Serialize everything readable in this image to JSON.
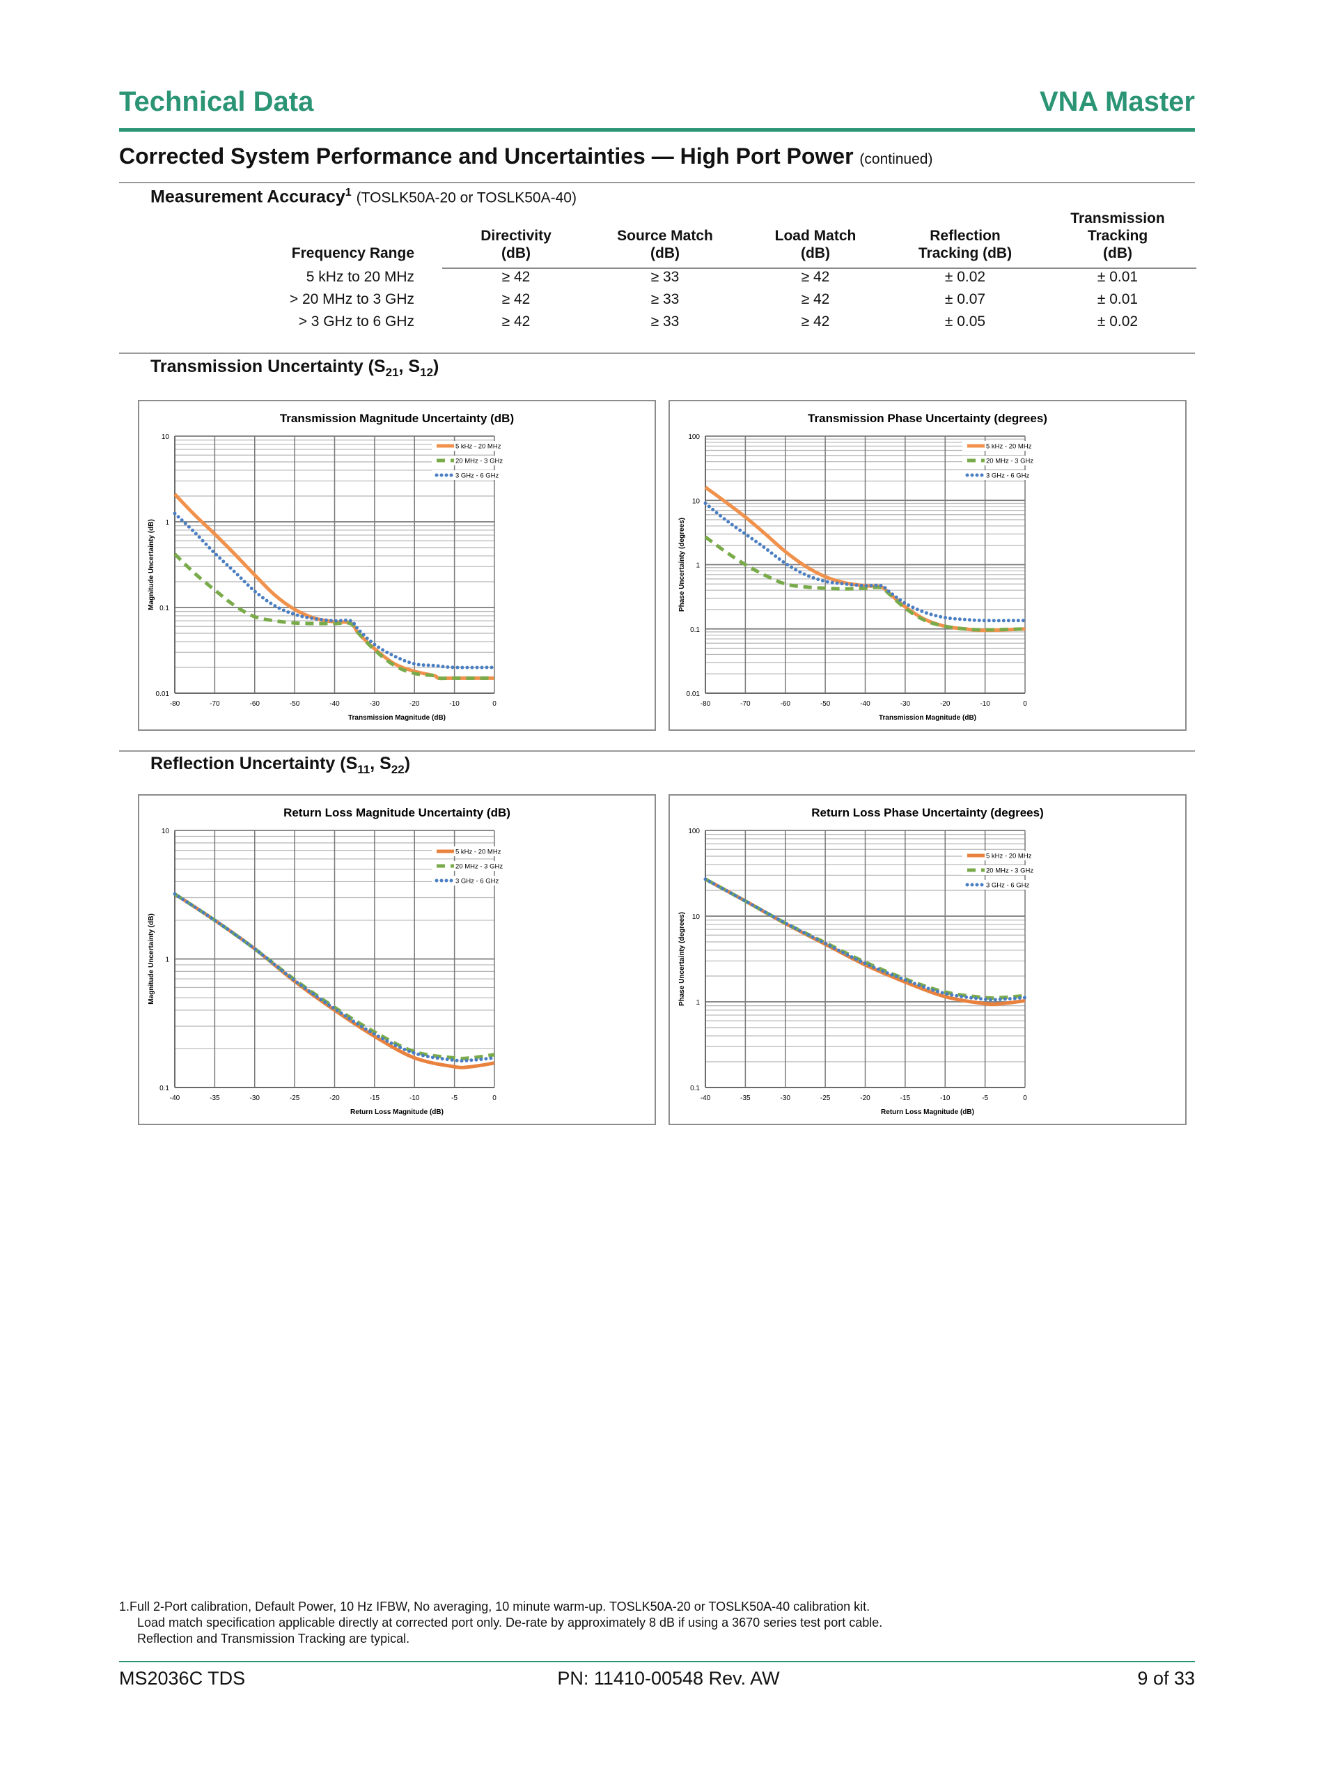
{
  "header": {
    "left_title": "Technical Data",
    "right_title": "VNA Master"
  },
  "section": {
    "title": "Corrected System Performance and Uncertainties — High Port Power",
    "suffix": "(continued)"
  },
  "accuracy": {
    "title": "Measurement Accuracy",
    "footnote_ref": "1",
    "note": "(TOSLK50A-20 or TOSLK50A-40)",
    "columns": [
      [
        "Frequency Range"
      ],
      [
        "Directivity",
        "(dB)"
      ],
      [
        "Source Match",
        "(dB)"
      ],
      [
        "Load Match",
        "(dB)"
      ],
      [
        "Reflection",
        "Tracking (dB)"
      ],
      [
        "Transmission",
        "Tracking",
        "(dB)"
      ]
    ],
    "rows": [
      [
        "5 kHz to 20 MHz",
        "≥ 42",
        "≥ 33",
        "≥ 42",
        "± 0.02",
        "± 0.01"
      ],
      [
        "> 20 MHz to 3 GHz",
        "≥ 42",
        "≥ 33",
        "≥ 42",
        "± 0.07",
        "± 0.01"
      ],
      [
        "> 3 GHz to 6 GHz",
        "≥ 42",
        "≥ 33",
        "≥ 42",
        "± 0.05",
        "± 0.02"
      ]
    ]
  },
  "transmission_heading": {
    "text": "Transmission Uncertainty (S",
    "sub1": "21",
    "mid": ", S",
    "sub2": "12",
    "end": ")"
  },
  "reflection_heading": {
    "text": "Reflection Uncertainty (S",
    "sub1": "11",
    "mid": ", S",
    "sub2": "22",
    "end": ")"
  },
  "series_colors": {
    "orange": "#f0914c",
    "green": "#7aab4a",
    "blue": "#4a7ec2"
  },
  "chart_data": [
    {
      "type": "line",
      "title": "Transmission Magnitude Uncertainty (dB)",
      "xlabel": "Transmission Magnitude (dB)",
      "ylabel": "Magnitude Uncertainty (dB)",
      "xlim": [
        -80,
        0
      ],
      "ylim": [
        0.01,
        10
      ],
      "yscale": "log",
      "xticks": [
        "-80",
        "-70",
        "-60",
        "-50",
        "-40",
        "-30",
        "-20",
        "-10",
        "0"
      ],
      "yticks": [
        "0.01",
        "0.1",
        "1",
        "10"
      ],
      "legend": "top-right",
      "grid": true,
      "series": [
        {
          "name": "5 kHz - 20 MHz",
          "style": "solid",
          "color": "#f0914c",
          "x": [
            -80,
            -75,
            -70,
            -65,
            -60,
            -55,
            -50,
            -45,
            -40,
            -36,
            -34,
            -30,
            -25,
            -20,
            -15,
            -14,
            -10,
            0
          ],
          "y": [
            2.1,
            1.2,
            0.72,
            0.42,
            0.24,
            0.14,
            0.095,
            0.075,
            0.068,
            0.066,
            0.05,
            0.033,
            0.022,
            0.018,
            0.016,
            0.015,
            0.015,
            0.015
          ]
        },
        {
          "name": "20 MHz - 3 GHz",
          "style": "dashed",
          "color": "#7aab4a",
          "x": [
            -80,
            -75,
            -70,
            -65,
            -60,
            -55,
            -50,
            -45,
            -40,
            -36,
            -34,
            -30,
            -25,
            -20,
            -15,
            -14,
            -10,
            0
          ],
          "y": [
            0.42,
            0.25,
            0.16,
            0.105,
            0.078,
            0.07,
            0.066,
            0.065,
            0.065,
            0.065,
            0.05,
            0.032,
            0.021,
            0.017,
            0.016,
            0.015,
            0.015,
            0.015
          ]
        },
        {
          "name": "3 GHz - 6 GHz",
          "style": "dotted",
          "color": "#4a7ec2",
          "x": [
            -80,
            -75,
            -70,
            -65,
            -60,
            -55,
            -50,
            -45,
            -40,
            -36,
            -34,
            -30,
            -25,
            -20,
            -15,
            -10,
            0
          ],
          "y": [
            1.25,
            0.75,
            0.43,
            0.26,
            0.155,
            0.105,
            0.083,
            0.074,
            0.07,
            0.07,
            0.055,
            0.037,
            0.027,
            0.022,
            0.021,
            0.02,
            0.02
          ]
        }
      ]
    },
    {
      "type": "line",
      "title": "Transmission Phase Uncertainty (degrees)",
      "xlabel": "Transmission Magnitude (dB)",
      "ylabel": "Phase Uncertainty (degrees)",
      "xlim": [
        -80,
        0
      ],
      "ylim": [
        0.01,
        100
      ],
      "yscale": "log",
      "xticks": [
        "-80",
        "-70",
        "-60",
        "-50",
        "-40",
        "-30",
        "-20",
        "-10",
        "0"
      ],
      "yticks": [
        "0.01",
        "0.1",
        "1",
        "10",
        "100"
      ],
      "legend": "top-right",
      "grid": true,
      "series": [
        {
          "name": "5 kHz - 20 MHz",
          "style": "solid",
          "color": "#f0914c",
          "x": [
            -80,
            -75,
            -70,
            -65,
            -60,
            -55,
            -50,
            -45,
            -40,
            -36,
            -34,
            -30,
            -25,
            -20,
            -15,
            -10,
            0
          ],
          "y": [
            16,
            9.5,
            5.5,
            3,
            1.6,
            0.95,
            0.65,
            0.52,
            0.47,
            0.45,
            0.36,
            0.22,
            0.14,
            0.11,
            0.1,
            0.095,
            0.1
          ]
        },
        {
          "name": "20 MHz - 3 GHz",
          "style": "dashed",
          "color": "#7aab4a",
          "x": [
            -80,
            -75,
            -70,
            -65,
            -60,
            -55,
            -50,
            -45,
            -40,
            -36,
            -34,
            -30,
            -25,
            -20,
            -15,
            -10,
            0
          ],
          "y": [
            2.7,
            1.6,
            1.0,
            0.68,
            0.5,
            0.45,
            0.43,
            0.42,
            0.43,
            0.44,
            0.35,
            0.21,
            0.135,
            0.11,
            0.1,
            0.097,
            0.1
          ]
        },
        {
          "name": "3 GHz - 6 GHz",
          "style": "dotted",
          "color": "#4a7ec2",
          "x": [
            -80,
            -75,
            -70,
            -65,
            -60,
            -55,
            -50,
            -45,
            -40,
            -36,
            -34,
            -30,
            -25,
            -20,
            -15,
            -10,
            0
          ],
          "y": [
            9,
            5,
            3,
            1.8,
            1.05,
            0.7,
            0.55,
            0.5,
            0.47,
            0.47,
            0.38,
            0.25,
            0.18,
            0.15,
            0.14,
            0.135,
            0.135
          ]
        }
      ]
    },
    {
      "type": "line",
      "title": "Return Loss Magnitude Uncertainty (dB)",
      "xlabel": "Return Loss Magnitude (dB)",
      "ylabel": "Magnitude Uncertainty (dB)",
      "xlim": [
        -40,
        0
      ],
      "ylim": [
        0.1,
        10
      ],
      "yscale": "log",
      "xticks": [
        "-40",
        "-35",
        "-30",
        "-25",
        "-20",
        "-15",
        "-10",
        "-5",
        "0"
      ],
      "yticks": [
        "0.1",
        "1",
        "10"
      ],
      "legend": "top-right",
      "grid": true,
      "series": [
        {
          "name": "5 kHz - 20 MHz",
          "style": "solid",
          "color": "#e8823e",
          "x": [
            -40,
            -35,
            -30,
            -25,
            -20,
            -15,
            -10,
            -5,
            -3,
            0
          ],
          "y": [
            3.2,
            2.0,
            1.2,
            0.67,
            0.4,
            0.25,
            0.17,
            0.145,
            0.145,
            0.155
          ]
        },
        {
          "name": "20 MHz - 3 GHz",
          "style": "dashed",
          "color": "#7aab4a",
          "x": [
            -40,
            -35,
            -30,
            -25,
            -20,
            -15,
            -10,
            -5,
            -3,
            0
          ],
          "y": [
            3.2,
            2.0,
            1.2,
            0.69,
            0.42,
            0.27,
            0.19,
            0.17,
            0.17,
            0.18
          ]
        },
        {
          "name": "3 GHz - 6 GHz",
          "style": "dotted",
          "color": "#4a7ec2",
          "x": [
            -40,
            -35,
            -30,
            -25,
            -20,
            -15,
            -10,
            -5,
            -3,
            0
          ],
          "y": [
            3.2,
            2.0,
            1.2,
            0.68,
            0.41,
            0.26,
            0.185,
            0.163,
            0.163,
            0.17
          ]
        }
      ]
    },
    {
      "type": "line",
      "title": "Return Loss Phase Uncertainty (degrees)",
      "xlabel": "Return Loss Magnitude (dB)",
      "ylabel": "Phase Uncertainty (degrees)",
      "xlim": [
        -40,
        0
      ],
      "ylim": [
        0.1,
        100
      ],
      "yscale": "log",
      "xticks": [
        "-40",
        "-35",
        "-30",
        "-25",
        "-20",
        "-15",
        "-10",
        "-5",
        "0"
      ],
      "yticks": [
        "0.1",
        "1",
        "10",
        "100"
      ],
      "legend": "top-right",
      "grid": true,
      "series": [
        {
          "name": "5 kHz - 20 MHz",
          "style": "solid",
          "color": "#e8823e",
          "x": [
            -40,
            -35,
            -30,
            -25,
            -20,
            -15,
            -10,
            -5,
            -3,
            0
          ],
          "y": [
            27,
            15,
            8.2,
            4.7,
            2.7,
            1.7,
            1.15,
            0.95,
            0.95,
            1.03
          ]
        },
        {
          "name": "20 MHz - 3 GHz",
          "style": "dashed",
          "color": "#7aab4a",
          "x": [
            -40,
            -35,
            -30,
            -25,
            -20,
            -15,
            -10,
            -5,
            -3,
            0
          ],
          "y": [
            27,
            15,
            8.3,
            4.9,
            2.9,
            1.85,
            1.3,
            1.12,
            1.12,
            1.18
          ]
        },
        {
          "name": "3 GHz - 6 GHz",
          "style": "dotted",
          "color": "#4a7ec2",
          "x": [
            -40,
            -35,
            -30,
            -25,
            -20,
            -15,
            -10,
            -5,
            -3,
            0
          ],
          "y": [
            27,
            15,
            8.3,
            4.8,
            2.8,
            1.8,
            1.25,
            1.07,
            1.07,
            1.12
          ]
        }
      ]
    }
  ],
  "footnotes": [
    "1.Full 2-Port calibration, Default Power, 10 Hz IFBW, No averaging, 10 minute warm-up. TOSLK50A-20 or TOSLK50A-40 calibration kit.",
    "Load match specification applicable directly at corrected port only. De-rate by approximately 8 dB if using a 3670 series test port cable.",
    "Reflection and Transmission Tracking are typical."
  ],
  "footer": {
    "left": "MS2036C TDS",
    "center": "PN: 11410-00548 Rev. AW",
    "right": "9 of 33"
  }
}
